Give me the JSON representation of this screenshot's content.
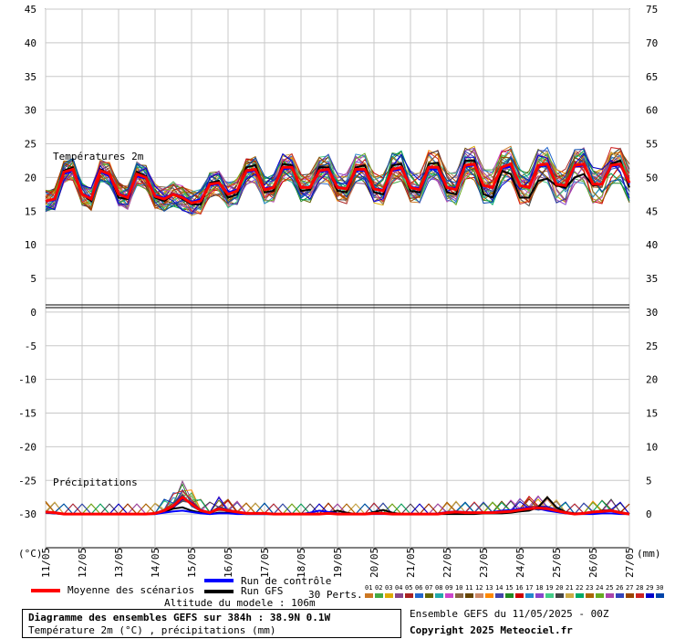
{
  "chart_data": {
    "type": "line",
    "title": "Diagramme des ensembles GEFS sur 384h : 38.9N 0.1W",
    "subtitle": "Température 2m (°C) , précipitations (mm)",
    "left_axis": {
      "unit": "(°C)",
      "ylim": [
        -35,
        45
      ],
      "ticks": [
        45,
        40,
        35,
        30,
        25,
        20,
        15,
        10,
        5,
        0,
        -5,
        -10,
        -15,
        -20,
        -25,
        -30
      ]
    },
    "right_axis": {
      "unit": "(mm)",
      "ylim": [
        -5,
        75
      ],
      "ticks": [
        75,
        70,
        65,
        60,
        55,
        50,
        45,
        40,
        35,
        30,
        25,
        20,
        15,
        10,
        5,
        0
      ]
    },
    "x_ticks": [
      "11/05",
      "12/05",
      "13/05",
      "14/05",
      "15/05",
      "16/05",
      "17/05",
      "18/05",
      "19/05",
      "20/05",
      "21/05",
      "22/05",
      "23/05",
      "24/05",
      "25/05",
      "26/05",
      "27/05"
    ],
    "x_range_hours": [
      0,
      384
    ],
    "temp_label": "Températures 2m",
    "precip_label": "Précipitations",
    "grid": true,
    "series": [
      {
        "name": "Moyenne des scénarios",
        "color": "#ff0000",
        "kind": "temp",
        "values": [
          16.5,
          16.8,
          20.8,
          21.2,
          17.5,
          16.8,
          21.0,
          20.5,
          17.5,
          17.0,
          20.5,
          20.0,
          17.2,
          16.8,
          17.5,
          17.0,
          16.2,
          16.5,
          19.0,
          19.2,
          17.5,
          18.0,
          21.0,
          21.2,
          18.2,
          18.5,
          21.5,
          21.5,
          18.5,
          18.5,
          21.0,
          21.2,
          18.5,
          18.3,
          21.2,
          21.2,
          18.3,
          18.0,
          21.2,
          21.5,
          18.5,
          18.2,
          21.5,
          21.5,
          18.5,
          18.2,
          21.8,
          22.0,
          18.8,
          18.5,
          21.5,
          22.0,
          18.8,
          18.5,
          21.8,
          22.0,
          19.0,
          18.8,
          21.8,
          22.0,
          19.0,
          19.0,
          21.8,
          22.0,
          19.2
        ]
      },
      {
        "name": "Run GFS",
        "color": "#000000",
        "kind": "temp",
        "values": [
          16.5,
          16.8,
          21.0,
          21.5,
          17.5,
          16.5,
          21.2,
          20.5,
          17.0,
          16.8,
          20.8,
          20.2,
          17.0,
          16.5,
          17.5,
          16.8,
          16.0,
          16.0,
          19.2,
          19.5,
          17.0,
          17.5,
          21.5,
          21.8,
          17.8,
          18.0,
          22.0,
          21.8,
          18.0,
          18.2,
          21.5,
          21.5,
          18.0,
          17.8,
          21.5,
          21.8,
          17.8,
          17.5,
          21.8,
          22.0,
          18.0,
          17.8,
          22.0,
          22.2,
          17.8,
          17.5,
          22.5,
          22.5,
          17.5,
          17.0,
          21.0,
          20.5,
          17.0,
          17.0,
          19.5,
          19.8,
          18.8,
          18.5,
          20.0,
          20.5,
          18.8,
          19.0,
          22.0,
          22.5,
          18.5
        ]
      },
      {
        "name": "Run de contrôle",
        "color": "#0000ff",
        "kind": "temp",
        "values": [
          16.5,
          16.6,
          20.5,
          21.0,
          17.6,
          17.0,
          20.8,
          20.2,
          17.6,
          17.2,
          20.2,
          19.8,
          17.4,
          17.0,
          17.6,
          17.2,
          16.4,
          16.8,
          18.8,
          19.0,
          17.8,
          18.2,
          20.8,
          21.0,
          18.4,
          18.6,
          21.2,
          21.4,
          18.6,
          18.6,
          20.8,
          21.0,
          18.6,
          18.4,
          21.0,
          21.0,
          18.4,
          18.2,
          21.0,
          21.2,
          18.6,
          18.4,
          21.2,
          21.2,
          18.6,
          18.4,
          21.6,
          21.8,
          18.8,
          18.4,
          21.4,
          21.6,
          18.8,
          18.6,
          21.6,
          21.8,
          19.0,
          18.8,
          21.6,
          21.8,
          19.0,
          19.0,
          21.6,
          21.8,
          19.0
        ]
      },
      {
        "name": "Moyenne des scénarios",
        "color": "#ff0000",
        "kind": "precip",
        "values": [
          0.3,
          0.2,
          0,
          0,
          0,
          0,
          0,
          0,
          0,
          0,
          0,
          0,
          0.1,
          0.5,
          1.2,
          2.5,
          1.5,
          0.5,
          0.2,
          0.8,
          0.5,
          0.3,
          0.1,
          0.1,
          0.1,
          0,
          0,
          0,
          0,
          0,
          0,
          0.1,
          0,
          0,
          0,
          0,
          0.1,
          0.1,
          0,
          0,
          0,
          0,
          0,
          0,
          0.2,
          0.3,
          0.2,
          0.2,
          0.2,
          0.2,
          0.3,
          0.4,
          0.6,
          0.8,
          0.9,
          0.8,
          0.5,
          0.2,
          0,
          0.1,
          0.3,
          0.4,
          0.5,
          0.2,
          0
        ]
      },
      {
        "name": "Run GFS",
        "color": "#000000",
        "kind": "precip",
        "values": [
          0.2,
          0.1,
          0,
          0,
          0,
          0,
          0,
          0,
          0,
          0,
          0,
          0,
          0,
          0.3,
          0.8,
          1.0,
          0.5,
          0.2,
          0,
          0.2,
          0.2,
          0.1,
          0,
          0,
          0,
          0,
          0,
          0,
          0,
          0,
          0,
          0.2,
          0.5,
          0.2,
          0,
          0,
          0.3,
          0.6,
          0.2,
          0,
          0,
          0,
          0,
          0,
          0,
          0,
          0,
          0,
          0.1,
          0.1,
          0.1,
          0.2,
          0.4,
          0.5,
          1.0,
          2.5,
          1.0,
          0.3,
          0.1,
          0.1,
          0.3,
          0.5,
          0.5,
          0.3,
          0
        ]
      },
      {
        "name": "Run de contrôle",
        "color": "#0000ff",
        "kind": "precip",
        "values": [
          0.2,
          0.1,
          0,
          0,
          0,
          0,
          0,
          0,
          0,
          0,
          0,
          0,
          0,
          0.2,
          0.4,
          0.5,
          0.3,
          0.1,
          0,
          0.1,
          0.1,
          0,
          0,
          0,
          0,
          0,
          0,
          0,
          0,
          0.2,
          0.5,
          0.3,
          0.1,
          0,
          0,
          0,
          0,
          0,
          0,
          0,
          0,
          0,
          0,
          0.1,
          0.3,
          0.4,
          0.3,
          0.2,
          0.2,
          0.3,
          0.5,
          0.6,
          0.8,
          1.0,
          0.8,
          0.5,
          0.3,
          0.1,
          0,
          0,
          0,
          0.1,
          0.1,
          0,
          0
        ]
      }
    ]
  },
  "legend": {
    "mean": "Moyenne des scénarios",
    "control": "Run de contrôle",
    "gfs": "Run GFS",
    "altitude": "Altitude du modele : 106m",
    "perts_label": "30 Perts.",
    "pert_numbers": [
      "01",
      "02",
      "03",
      "04",
      "05",
      "06",
      "07",
      "08",
      "09",
      "10",
      "11",
      "12",
      "13",
      "14",
      "15",
      "16",
      "17",
      "18",
      "19",
      "20",
      "21",
      "22",
      "23",
      "24",
      "25",
      "26",
      "27",
      "28",
      "29",
      "30"
    ],
    "pert_colors": [
      "#cc7722",
      "#44aa44",
      "#ddaa00",
      "#884488",
      "#aa2222",
      "#2266cc",
      "#666600",
      "#22aaaa",
      "#cc44cc",
      "#886644",
      "#664400",
      "#cc8866",
      "#ff8800",
      "#4444aa",
      "#228822",
      "#cc0000",
      "#2288cc",
      "#8844cc",
      "#44cc88",
      "#444444",
      "#ccaa44",
      "#00aa66",
      "#aa6600",
      "#66aa22",
      "#aa44aa",
      "#3344bb",
      "#994400",
      "#cc2222",
      "#0000cc",
      "#0044aa"
    ]
  },
  "footer": {
    "title": "Diagramme des ensembles GEFS sur 384h : 38.9N 0.1W",
    "subtitle": "Température 2m (°C) , précipitations (mm)",
    "ensemble": "Ensemble GEFS du 11/05/2025 - 00Z",
    "copyright": "Copyright 2025 Meteociel.fr"
  }
}
